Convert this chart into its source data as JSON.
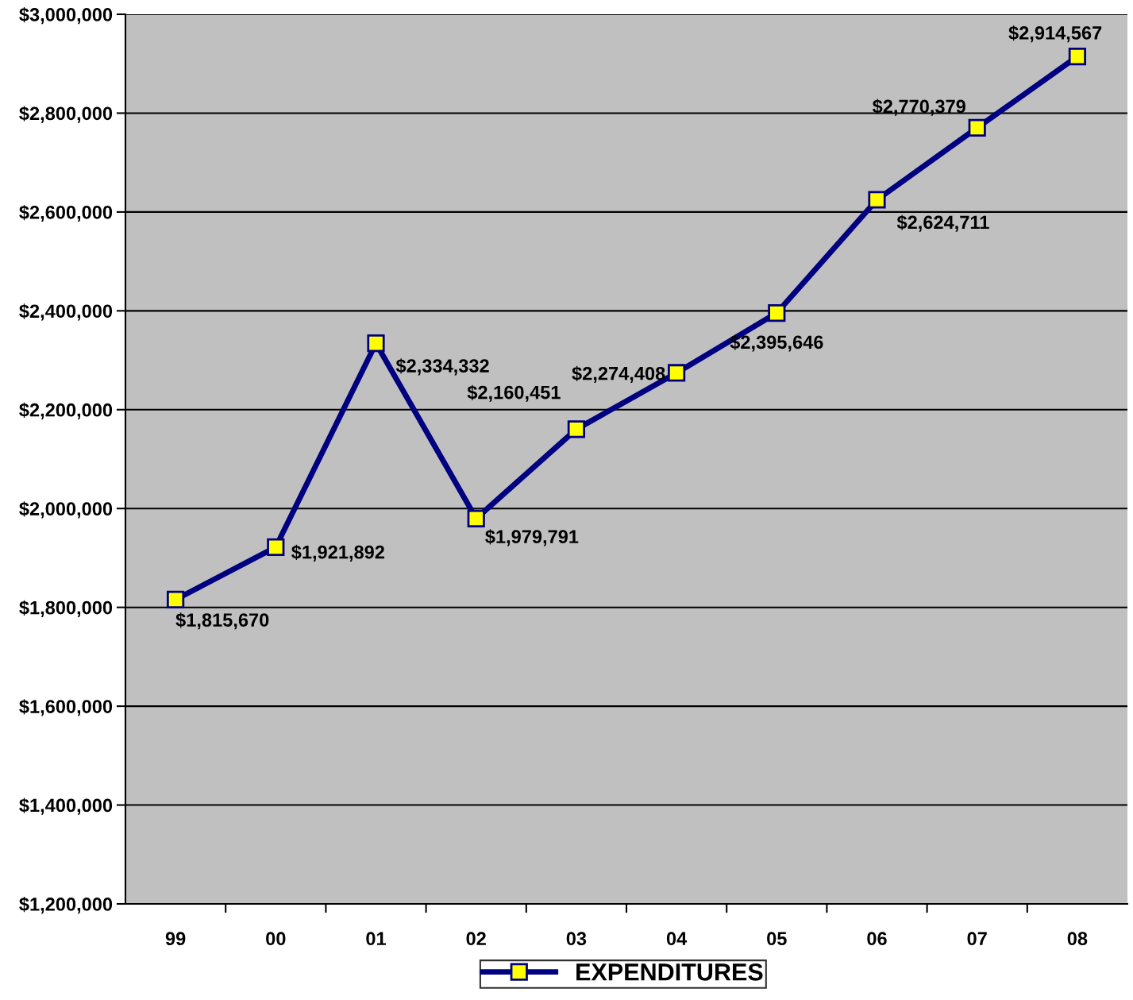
{
  "chart_data": {
    "type": "line",
    "categories": [
      "99",
      "00",
      "01",
      "02",
      "03",
      "04",
      "05",
      "06",
      "07",
      "08"
    ],
    "series": [
      {
        "name": "EXPENDITURES",
        "color": "#000080",
        "values": [
          1815670,
          1921892,
          2334332,
          1979791,
          2160451,
          2274408,
          2395646,
          2624711,
          2770379,
          2914567
        ],
        "value_labels": [
          "$1,815,670",
          "$1,921,892",
          "$2,334,332",
          "$1,979,791",
          "$2,160,451",
          "$2,274,408",
          "$2,395,646",
          "$2,624,711",
          "$2,770,379",
          "$2,914,567"
        ]
      }
    ],
    "ylim": [
      1200000,
      3000000
    ],
    "yticks": [
      {
        "value": 1200000,
        "label": "$1,200,000"
      },
      {
        "value": 1400000,
        "label": "$1,400,000"
      },
      {
        "value": 1600000,
        "label": "$1,600,000"
      },
      {
        "value": 1800000,
        "label": "$1,800,000"
      },
      {
        "value": 2000000,
        "label": "$2,000,000"
      },
      {
        "value": 2200000,
        "label": "$2,200,000"
      },
      {
        "value": 2400000,
        "label": "$2,400,000"
      },
      {
        "value": 2600000,
        "label": "$2,600,000"
      },
      {
        "value": 2800000,
        "label": "$2,800,000"
      },
      {
        "value": 3000000,
        "label": "$3,000,000"
      }
    ],
    "grid": "y",
    "legend": "bottom",
    "marker": "square",
    "line_style": "solid"
  }
}
